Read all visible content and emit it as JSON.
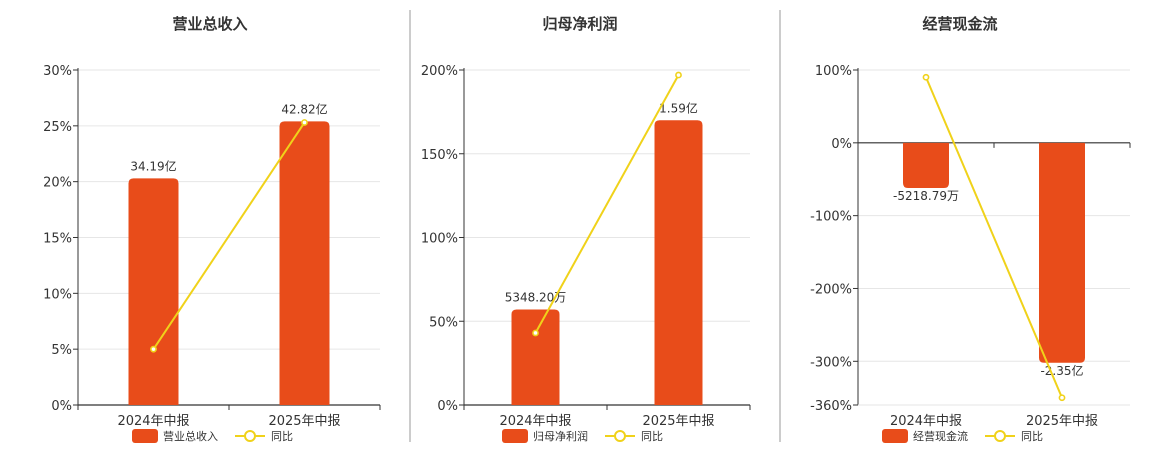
{
  "colors": {
    "bar": "#e84c1a",
    "line": "#f0d21a",
    "axis": "#333333",
    "grid": "#e6e6e6",
    "divider": "#999999",
    "text": "#333333"
  },
  "legend_line_label": "同比",
  "chart_data": [
    {
      "type": "bar",
      "title": "营业总收入",
      "categories": [
        "2024年中报",
        "2025年中报"
      ],
      "ylabel": "",
      "ylim": [
        0,
        30
      ],
      "y_tick_labels": [
        "30%",
        "25%",
        "20%",
        "15%",
        "10%",
        "5%",
        "0%"
      ],
      "y_tick_values": [
        30,
        25,
        20,
        15,
        10,
        5,
        0
      ],
      "series": [
        {
          "name": "营业总收入",
          "kind": "bar",
          "values": [
            20.3,
            25.4
          ],
          "data_labels": [
            "34.19亿",
            "42.82亿"
          ]
        },
        {
          "name": "同比",
          "kind": "line",
          "values": [
            5.0,
            25.3
          ]
        }
      ],
      "grid": true,
      "legend": "bottom"
    },
    {
      "type": "bar",
      "title": "归母净利润",
      "categories": [
        "2024年中报",
        "2025年中报"
      ],
      "ylabel": "",
      "ylim": [
        0,
        200
      ],
      "y_tick_labels": [
        "200%",
        "150%",
        "100%",
        "50%",
        "0%"
      ],
      "y_tick_values": [
        200,
        150,
        100,
        50,
        0
      ],
      "series": [
        {
          "name": "归母净利润",
          "kind": "bar",
          "values": [
            57,
            170
          ],
          "data_labels": [
            "5348.20万",
            "1.59亿"
          ]
        },
        {
          "name": "同比",
          "kind": "line",
          "values": [
            43,
            197
          ]
        }
      ],
      "grid": true,
      "legend": "bottom"
    },
    {
      "type": "bar",
      "title": "经营现金流",
      "categories": [
        "2024年中报",
        "2025年中报"
      ],
      "ylabel": "",
      "ylim": [
        -360,
        100
      ],
      "y_tick_labels": [
        "100%",
        "0%",
        "-100%",
        "-200%",
        "-300%",
        "-360%"
      ],
      "y_tick_values": [
        100,
        0,
        -100,
        -200,
        -300,
        -360
      ],
      "series": [
        {
          "name": "经营现金流",
          "kind": "bar",
          "values": [
            -62,
            -302
          ],
          "data_labels": [
            "-5218.79万",
            "-2.35亿"
          ]
        },
        {
          "name": "同比",
          "kind": "line",
          "values": [
            90,
            -350
          ]
        }
      ],
      "grid": true,
      "legend": "bottom"
    }
  ]
}
